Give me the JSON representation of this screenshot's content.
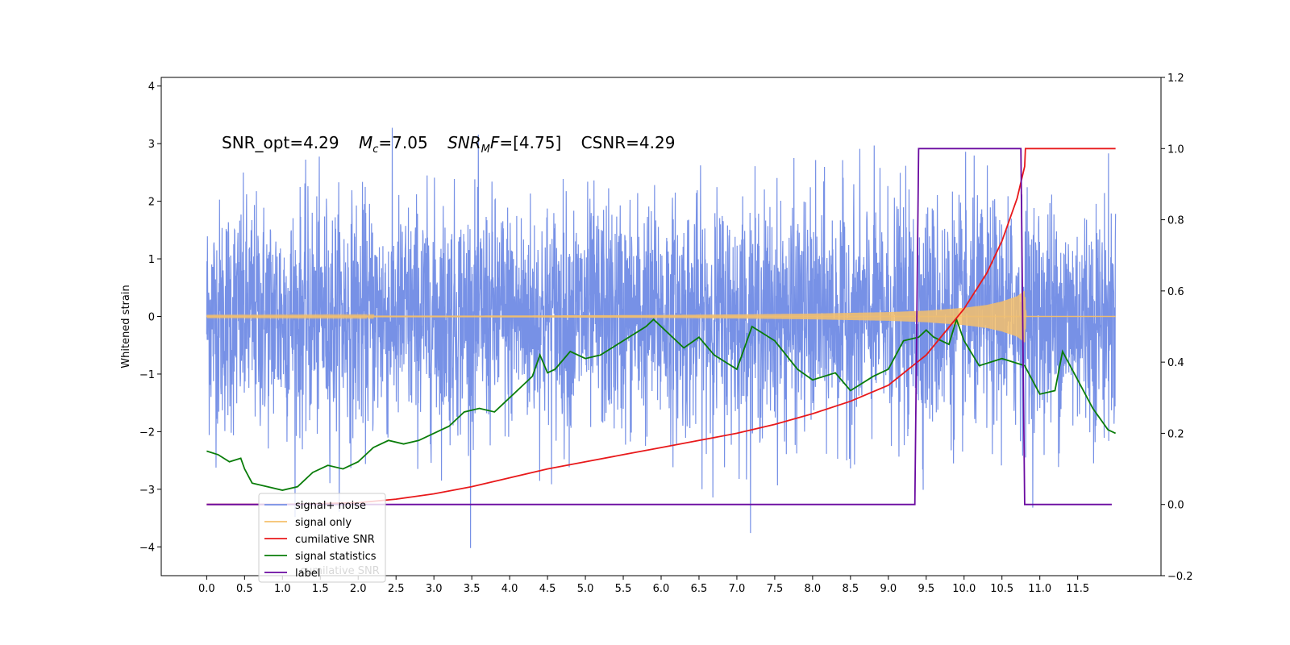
{
  "chart_data": {
    "type": "line",
    "title": "",
    "xlabel": "",
    "ylabel": "Whitened strain",
    "ylabel_right": "",
    "xlim": [
      -0.6,
      12.6
    ],
    "ylim": [
      -4.5,
      4.15
    ],
    "ylim_right": [
      -0.2,
      1.2
    ],
    "xticks": [
      "0.0",
      "0.5",
      "1.0",
      "1.5",
      "2.0",
      "2.5",
      "3.0",
      "3.5",
      "4.0",
      "4.5",
      "5.0",
      "5.5",
      "6.0",
      "6.5",
      "7.0",
      "7.5",
      "8.0",
      "8.5",
      "9.0",
      "9.5",
      "10.0",
      "10.5",
      "11.0",
      "11.5"
    ],
    "yticks_left": [
      "−4",
      "−3",
      "−2",
      "−1",
      "0",
      "1",
      "2",
      "3",
      "4"
    ],
    "yticks_right": [
      "−0.2",
      "0.0",
      "0.2",
      "0.4",
      "0.6",
      "0.8",
      "1.0",
      "1.2"
    ],
    "grid": false,
    "legend_position": "lower-left",
    "annotation": {
      "snr_opt": "SNR_opt=4.29",
      "mc_sym": "M",
      "mc_sub": "c",
      "mc_val": "=7.05",
      "snrmf_sym": "SNR",
      "snrmf_sub": "M",
      "snrmf_f": "F",
      "snrmf_val": "=[4.75]",
      "csnr": "CSNR=4.29"
    },
    "series": [
      {
        "name": "signal+ noise",
        "axis": "left",
        "color": "#7791e6",
        "description": "whitened noise plus signal, roughly N(0,1) samples over x in [0, 12]",
        "x_range": [
          0.0,
          12.0
        ],
        "amplitude_range": [
          -4.1,
          3.8
        ]
      },
      {
        "name": "signal only",
        "axis": "left",
        "color": "#f5c06b",
        "description": "chirp signal, near zero until growing amplitude to about 0.45 at x=10.8 then zero",
        "x_range": [
          0.0,
          12.0
        ],
        "envelope": {
          "x": [
            0,
            4,
            6,
            7,
            8,
            9,
            9.5,
            10,
            10.3,
            10.5,
            10.7,
            10.8,
            10.82,
            12
          ],
          "y": [
            0.01,
            0.015,
            0.025,
            0.035,
            0.05,
            0.075,
            0.1,
            0.15,
            0.2,
            0.26,
            0.35,
            0.45,
            0.0,
            0.0
          ]
        }
      },
      {
        "name": "cumilative SNR",
        "axis": "right",
        "color": "#e8191b",
        "x": [
          0.0,
          1.0,
          2.0,
          2.5,
          3.0,
          3.5,
          4.0,
          4.5,
          5.0,
          5.5,
          6.0,
          6.5,
          7.0,
          7.5,
          8.0,
          8.5,
          9.0,
          9.5,
          10.0,
          10.3,
          10.5,
          10.6,
          10.7,
          10.8,
          10.81,
          12.0
        ],
        "y": [
          0.0,
          0.0,
          0.005,
          0.015,
          0.03,
          0.05,
          0.075,
          0.1,
          0.12,
          0.14,
          0.16,
          0.18,
          0.2,
          0.225,
          0.255,
          0.29,
          0.335,
          0.42,
          0.55,
          0.65,
          0.74,
          0.8,
          0.86,
          0.95,
          1.0,
          1.0
        ]
      },
      {
        "name": "signal statistics",
        "axis": "right",
        "color": "#0a7d0a",
        "x": [
          0.0,
          0.15,
          0.3,
          0.45,
          0.5,
          0.6,
          0.8,
          1.0,
          1.2,
          1.4,
          1.6,
          1.8,
          2.0,
          2.2,
          2.4,
          2.6,
          2.8,
          3.0,
          3.2,
          3.4,
          3.6,
          3.8,
          4.0,
          4.2,
          4.3,
          4.4,
          4.5,
          4.6,
          4.8,
          5.0,
          5.2,
          5.5,
          5.8,
          5.9,
          6.1,
          6.3,
          6.5,
          6.7,
          7.0,
          7.2,
          7.5,
          7.8,
          8.0,
          8.3,
          8.5,
          8.8,
          9.0,
          9.2,
          9.4,
          9.5,
          9.6,
          9.8,
          9.9,
          10.0,
          10.2,
          10.5,
          10.8,
          11.0,
          11.2,
          11.3,
          11.5,
          11.7,
          11.9,
          12.0
        ],
        "y": [
          0.15,
          0.14,
          0.12,
          0.13,
          0.1,
          0.06,
          0.05,
          0.04,
          0.05,
          0.09,
          0.11,
          0.1,
          0.12,
          0.16,
          0.18,
          0.17,
          0.18,
          0.2,
          0.22,
          0.26,
          0.27,
          0.26,
          0.3,
          0.34,
          0.36,
          0.42,
          0.37,
          0.38,
          0.43,
          0.41,
          0.42,
          0.46,
          0.5,
          0.52,
          0.48,
          0.44,
          0.47,
          0.42,
          0.38,
          0.5,
          0.46,
          0.38,
          0.35,
          0.37,
          0.32,
          0.36,
          0.38,
          0.46,
          0.47,
          0.49,
          0.47,
          0.45,
          0.52,
          0.46,
          0.39,
          0.41,
          0.39,
          0.31,
          0.32,
          0.43,
          0.35,
          0.27,
          0.21,
          0.2
        ]
      },
      {
        "name": "label",
        "axis": "right",
        "color": "#6a0aa0",
        "x": [
          0.0,
          9.35,
          9.4,
          10.75,
          10.8,
          11.95
        ],
        "y": [
          0.0,
          0.0,
          1.0,
          1.0,
          0.0,
          0.0
        ]
      }
    ],
    "legend_overlap_text": "cumilative SNR"
  }
}
